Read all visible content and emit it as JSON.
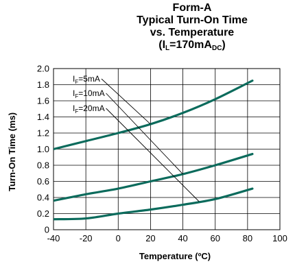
{
  "chart_data": {
    "type": "line",
    "title_lines": [
      "Form-A",
      "Typical Turn-On Time",
      "vs. Temperature"
    ],
    "title_cond": {
      "open": "(I",
      "sub1": "L",
      "mid": "=170mA",
      "sub2": "DC",
      "close": ")"
    },
    "xlabel": "Temperature (ºC)",
    "ylabel": "Turn-On Time (ms)",
    "xlim": [
      -40,
      100
    ],
    "ylim": [
      0,
      2.0
    ],
    "x_ticks": [
      "-40",
      "-20",
      "0",
      "20",
      "40",
      "60",
      "80",
      "100"
    ],
    "y_ticks": [
      "0",
      "0.2",
      "0.4",
      "0.6",
      "0.8",
      "1.0",
      "1.2",
      "1.4",
      "1.6",
      "1.8",
      "2.0"
    ],
    "grid": true,
    "line_color": "#0b6b5c",
    "series": [
      {
        "name": "IF=5mA",
        "label_main": "I",
        "label_sub": "F",
        "label_rest": "=5mA",
        "x": [
          -40,
          -20,
          0,
          20,
          40,
          60,
          83
        ],
        "y": [
          1.0,
          1.1,
          1.2,
          1.31,
          1.45,
          1.62,
          1.85
        ],
        "pointer_to": [
          20,
          1.31
        ]
      },
      {
        "name": "IF=10mA",
        "label_main": "I",
        "label_sub": "F",
        "label_rest": "=10mA",
        "x": [
          -40,
          -20,
          0,
          20,
          40,
          60,
          83
        ],
        "y": [
          0.36,
          0.44,
          0.51,
          0.6,
          0.69,
          0.8,
          0.94
        ],
        "pointer_to": [
          40,
          0.69
        ]
      },
      {
        "name": "IF=20mA",
        "label_main": "I",
        "label_sub": "F",
        "label_rest": "=20mA",
        "x": [
          -40,
          -20,
          0,
          20,
          40,
          60,
          83
        ],
        "y": [
          0.13,
          0.14,
          0.2,
          0.25,
          0.31,
          0.38,
          0.51
        ],
        "pointer_to": [
          50,
          0.35
        ]
      }
    ]
  }
}
